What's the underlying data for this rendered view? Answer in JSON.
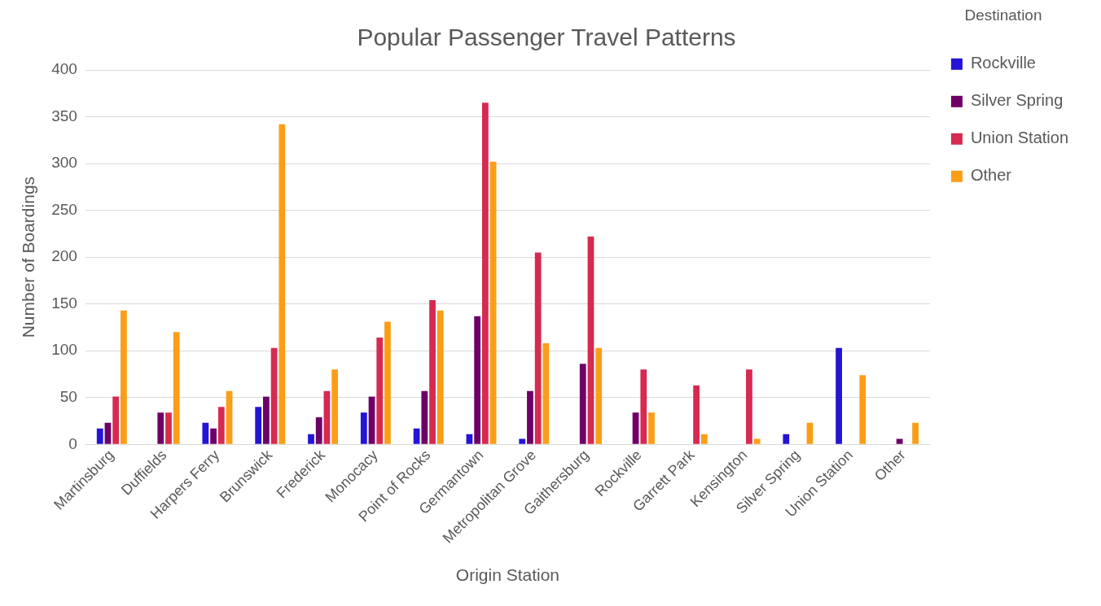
{
  "chart_data": {
    "type": "bar",
    "title": "Popular Passenger Travel Patterns",
    "xlabel": "Origin Station",
    "ylabel": "Number of Boardings",
    "legend_title": "Destination",
    "legend": "top right",
    "grid": "y",
    "categories": [
      "Martinsburg",
      "Duffields",
      "Harpers Ferry",
      "Brunswick",
      "Frederick",
      "Monocacy",
      "Point of Rocks",
      "Germantown",
      "Metropolitan Grove",
      "Gaithersburg",
      "Rockville",
      "Garrett Park",
      "Kensington",
      "Silver Spring",
      "Union Station",
      "Other"
    ],
    "ylim": [
      0,
      400
    ],
    "yticks": [
      0,
      50,
      100,
      150,
      200,
      250,
      300,
      350,
      400
    ],
    "series": [
      {
        "name": "Rockville",
        "color": "#2314d6",
        "values": [
          17,
          null,
          23,
          40,
          11,
          34,
          17,
          11,
          6,
          null,
          null,
          null,
          null,
          11,
          103,
          null
        ]
      },
      {
        "name": "Silver Spring",
        "color": "#6e0068",
        "values": [
          23,
          34,
          17,
          51,
          29,
          51,
          57,
          137,
          57,
          86,
          34,
          null,
          null,
          null,
          null,
          6
        ]
      },
      {
        "name": "Union Station",
        "color": "#d62a50",
        "values": [
          51,
          34,
          40,
          103,
          57,
          114,
          154,
          365,
          205,
          222,
          80,
          63,
          80,
          null,
          null,
          null
        ]
      },
      {
        "name": "Other",
        "color": "#fb9e17",
        "values": [
          143,
          120,
          57,
          342,
          80,
          131,
          143,
          302,
          108,
          103,
          34,
          11,
          6,
          23,
          74,
          23
        ]
      }
    ]
  }
}
